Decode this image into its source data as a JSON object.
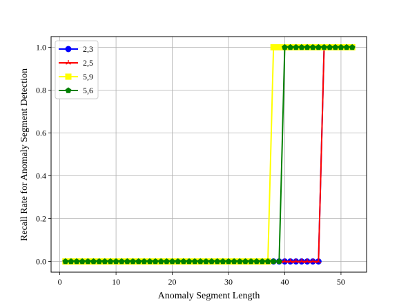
{
  "chart_data": {
    "type": "line",
    "title": "",
    "xlabel": "Anomaly Segment Length",
    "ylabel": "Recall Rate for Anomaly Segment Detection",
    "xlim": [
      -1.55,
      54.55
    ],
    "ylim": [
      -0.05,
      1.05
    ],
    "xticks": [
      0,
      10,
      20,
      30,
      40,
      50
    ],
    "yticks": [
      0.0,
      0.2,
      0.4,
      0.6,
      0.8,
      1.0
    ],
    "xtick_labels": [
      "0",
      "10",
      "20",
      "30",
      "40",
      "50"
    ],
    "ytick_labels": [
      "0.0",
      "0.2",
      "0.4",
      "0.6",
      "0.8",
      "1.0"
    ],
    "grid": true,
    "legend_position": "top-left",
    "series": [
      {
        "name": "2,3",
        "color": "#0000ff",
        "marker": "circle",
        "x": [
          1,
          2,
          3,
          4,
          5,
          6,
          7,
          8,
          9,
          10,
          11,
          12,
          13,
          14,
          15,
          16,
          17,
          18,
          19,
          20,
          21,
          22,
          23,
          24,
          25,
          26,
          27,
          28,
          29,
          30,
          31,
          32,
          33,
          34,
          35,
          36,
          37,
          38,
          39,
          40,
          41,
          42,
          43,
          44,
          45,
          46,
          47,
          48,
          49,
          50,
          51,
          52
        ],
        "y": [
          0,
          0,
          0,
          0,
          0,
          0,
          0,
          0,
          0,
          0,
          0,
          0,
          0,
          0,
          0,
          0,
          0,
          0,
          0,
          0,
          0,
          0,
          0,
          0,
          0,
          0,
          0,
          0,
          0,
          0,
          0,
          0,
          0,
          0,
          0,
          0,
          0,
          0,
          0,
          0,
          0,
          0,
          0,
          0,
          0,
          0,
          1,
          1,
          1,
          1,
          1,
          1
        ]
      },
      {
        "name": "2,5",
        "color": "#ff0000",
        "marker": "tri",
        "x": [
          1,
          2,
          3,
          4,
          5,
          6,
          7,
          8,
          9,
          10,
          11,
          12,
          13,
          14,
          15,
          16,
          17,
          18,
          19,
          20,
          21,
          22,
          23,
          24,
          25,
          26,
          27,
          28,
          29,
          30,
          31,
          32,
          33,
          34,
          35,
          36,
          37,
          38,
          39,
          40,
          41,
          42,
          43,
          44,
          45,
          46,
          47,
          48,
          49,
          50,
          51,
          52
        ],
        "y": [
          0,
          0,
          0,
          0,
          0,
          0,
          0,
          0,
          0,
          0,
          0,
          0,
          0,
          0,
          0,
          0,
          0,
          0,
          0,
          0,
          0,
          0,
          0,
          0,
          0,
          0,
          0,
          0,
          0,
          0,
          0,
          0,
          0,
          0,
          0,
          0,
          0,
          0,
          0,
          0,
          0,
          0,
          0,
          0,
          0,
          0,
          1,
          1,
          1,
          1,
          1,
          1
        ]
      },
      {
        "name": "5,9",
        "color": "#ffff00",
        "marker": "square",
        "x": [
          1,
          2,
          3,
          4,
          5,
          6,
          7,
          8,
          9,
          10,
          11,
          12,
          13,
          14,
          15,
          16,
          17,
          18,
          19,
          20,
          21,
          22,
          23,
          24,
          25,
          26,
          27,
          28,
          29,
          30,
          31,
          32,
          33,
          34,
          35,
          36,
          37,
          38,
          39,
          40,
          41,
          42,
          43,
          44,
          45,
          46,
          47,
          48,
          49,
          50,
          51,
          52
        ],
        "y": [
          0,
          0,
          0,
          0,
          0,
          0,
          0,
          0,
          0,
          0,
          0,
          0,
          0,
          0,
          0,
          0,
          0,
          0,
          0,
          0,
          0,
          0,
          0,
          0,
          0,
          0,
          0,
          0,
          0,
          0,
          0,
          0,
          0,
          0,
          0,
          0,
          0,
          1,
          1,
          1,
          1,
          1,
          1,
          1,
          1,
          1,
          1,
          1,
          1,
          1,
          1,
          1
        ]
      },
      {
        "name": "5,6",
        "color": "#008000",
        "marker": "pentagon",
        "x": [
          1,
          2,
          3,
          4,
          5,
          6,
          7,
          8,
          9,
          10,
          11,
          12,
          13,
          14,
          15,
          16,
          17,
          18,
          19,
          20,
          21,
          22,
          23,
          24,
          25,
          26,
          27,
          28,
          29,
          30,
          31,
          32,
          33,
          34,
          35,
          36,
          37,
          38,
          39,
          40,
          41,
          42,
          43,
          44,
          45,
          46,
          47,
          48,
          49,
          50,
          51,
          52
        ],
        "y": [
          0,
          0,
          0,
          0,
          0,
          0,
          0,
          0,
          0,
          0,
          0,
          0,
          0,
          0,
          0,
          0,
          0,
          0,
          0,
          0,
          0,
          0,
          0,
          0,
          0,
          0,
          0,
          0,
          0,
          0,
          0,
          0,
          0,
          0,
          0,
          0,
          0,
          0,
          0,
          1,
          1,
          1,
          1,
          1,
          1,
          1,
          1,
          1,
          1,
          1,
          1,
          1
        ]
      }
    ]
  }
}
